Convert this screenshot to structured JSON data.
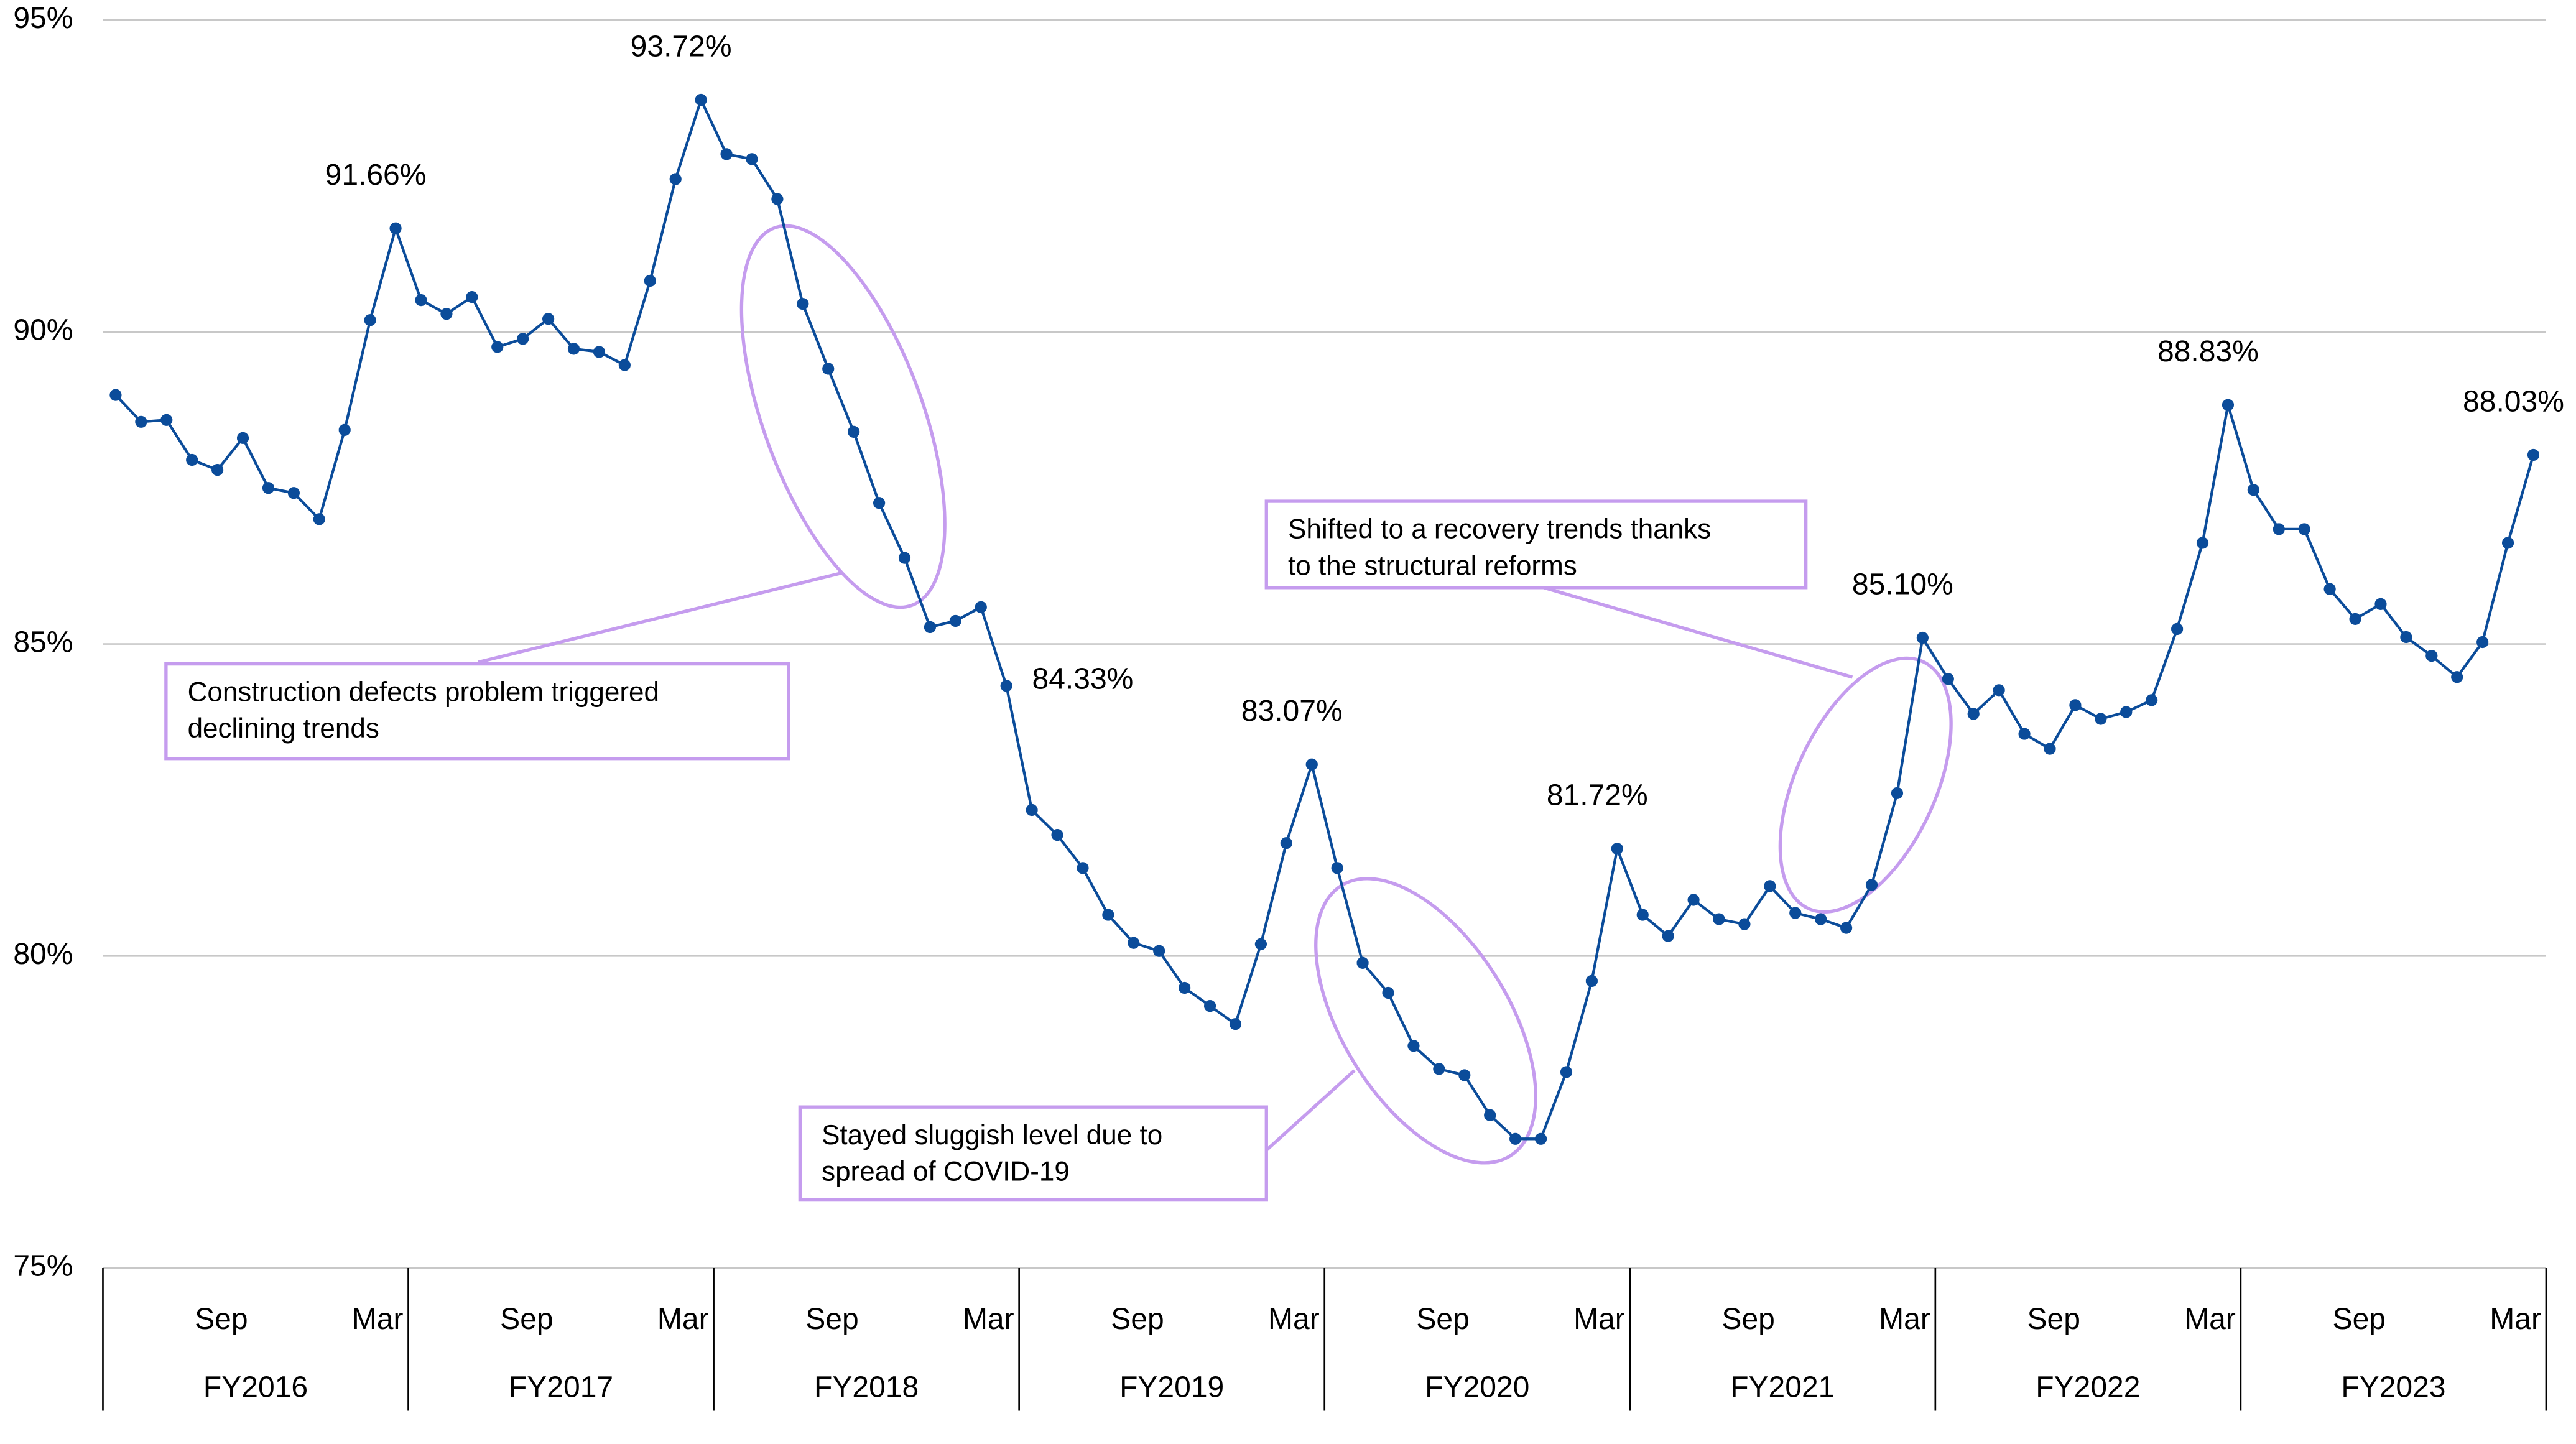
{
  "chart_data": {
    "type": "line",
    "categories": [
      null,
      null,
      null,
      null,
      null,
      "Sep",
      null,
      null,
      null,
      null,
      null,
      "Mar",
      null,
      null,
      null,
      null,
      null,
      "Sep",
      null,
      null,
      null,
      null,
      null,
      "Mar",
      null,
      null,
      null,
      null,
      null,
      "Sep",
      null,
      null,
      null,
      null,
      null,
      "Mar",
      null,
      null,
      null,
      null,
      null,
      "Sep",
      null,
      null,
      null,
      null,
      null,
      "Mar",
      null,
      null,
      null,
      null,
      null,
      "Sep",
      null,
      null,
      null,
      null,
      null,
      "Mar",
      null,
      null,
      null,
      null,
      null,
      "Sep",
      null,
      null,
      null,
      null,
      null,
      "Mar",
      null,
      null,
      null,
      null,
      null,
      "Sep",
      null,
      null,
      null,
      null,
      null,
      "Mar",
      null,
      null,
      null,
      null,
      null,
      "Sep",
      null,
      null,
      null,
      null,
      null,
      "Mar"
    ],
    "groups": [
      "FY2016",
      "FY2017",
      "FY2018",
      "FY2019",
      "FY2020",
      "FY2021",
      "FY2022",
      "FY2023"
    ],
    "series": [
      {
        "color": "#0b4c9a",
        "values": [
          88.99,
          88.56,
          88.59,
          87.95,
          87.79,
          88.3,
          87.5,
          87.42,
          87.0,
          88.43,
          90.19,
          91.66,
          90.51,
          90.29,
          90.56,
          89.76,
          89.89,
          90.21,
          89.73,
          89.68,
          89.47,
          90.82,
          92.45,
          93.72,
          92.85,
          92.77,
          92.13,
          90.45,
          89.41,
          88.4,
          87.26,
          86.38,
          85.27,
          85.37,
          85.59,
          84.33,
          82.34,
          81.94,
          81.41,
          80.66,
          80.21,
          80.08,
          79.49,
          79.2,
          78.91,
          80.19,
          81.81,
          83.07,
          81.41,
          79.89,
          79.41,
          78.56,
          78.19,
          78.09,
          77.45,
          77.07,
          77.07,
          78.14,
          79.6,
          81.72,
          80.66,
          80.32,
          80.9,
          80.59,
          80.51,
          81.12,
          80.69,
          80.59,
          80.45,
          81.14,
          82.61,
          85.1,
          84.44,
          83.88,
          84.26,
          83.56,
          83.32,
          84.02,
          83.8,
          83.91,
          84.1,
          85.24,
          86.62,
          88.83,
          87.47,
          86.84,
          86.84,
          85.88,
          85.4,
          85.64,
          85.11,
          84.81,
          84.47,
          85.03,
          86.62,
          88.03
        ],
        "value_labels": [
          null,
          null,
          null,
          null,
          null,
          null,
          null,
          null,
          null,
          null,
          null,
          "91.66%",
          null,
          null,
          null,
          null,
          null,
          null,
          null,
          null,
          null,
          null,
          null,
          "93.72%",
          null,
          null,
          null,
          null,
          null,
          null,
          null,
          null,
          null,
          null,
          null,
          "84.33%",
          null,
          null,
          null,
          null,
          null,
          null,
          null,
          null,
          null,
          null,
          null,
          "83.07%",
          null,
          null,
          null,
          null,
          null,
          null,
          null,
          null,
          null,
          null,
          null,
          "81.72%",
          null,
          null,
          null,
          null,
          null,
          null,
          null,
          null,
          null,
          null,
          null,
          "85.10%",
          null,
          null,
          null,
          null,
          null,
          null,
          null,
          null,
          null,
          null,
          null,
          "88.83%",
          null,
          null,
          null,
          null,
          null,
          null,
          null,
          null,
          null,
          null,
          null,
          "88.03%"
        ]
      }
    ],
    "ylim": [
      75,
      95
    ],
    "yticks": [
      {
        "value": 75,
        "label": "75%"
      },
      {
        "value": 80,
        "label": "80%"
      },
      {
        "value": 85,
        "label": "85%"
      },
      {
        "value": 90,
        "label": "90%"
      },
      {
        "value": 95,
        "label": "95%"
      }
    ],
    "grid": true,
    "annotations": [
      {
        "text": [
          "Construction defects problem triggered",
          "declining trends"
        ]
      },
      {
        "text": [
          "Stayed sluggish level due to",
          "spread of COVID-19"
        ]
      },
      {
        "text": [
          "Shifted to a recovery trends thanks",
          "to the structural reforms"
        ]
      }
    ]
  }
}
